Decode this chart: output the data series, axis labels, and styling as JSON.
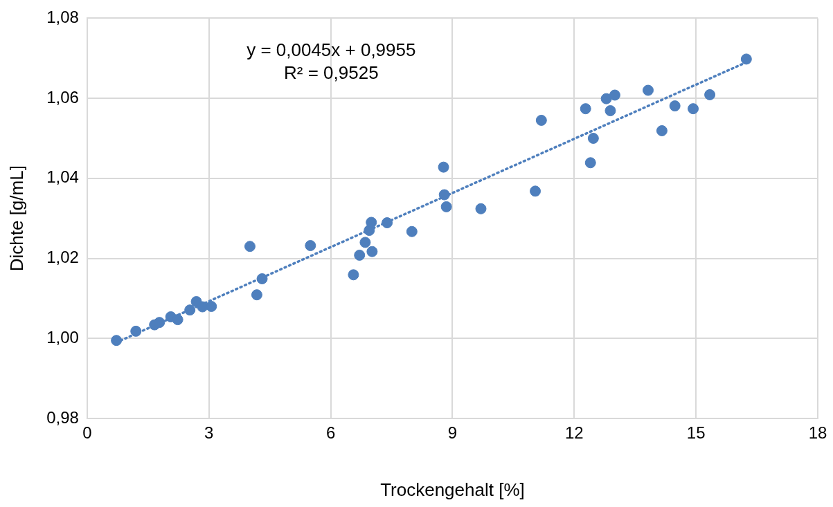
{
  "chart_data": {
    "type": "scatter",
    "xlabel": "Trockengehalt [%]",
    "ylabel": "Dichte [g/mL]",
    "annotations": [
      "y = 0,0045x + 0,9955",
      "R² = 0,9525"
    ],
    "xlim": [
      0,
      18
    ],
    "xticks": [
      0,
      3,
      6,
      9,
      12,
      15,
      18
    ],
    "ylim": [
      0.98,
      1.08
    ],
    "yticks": [
      {
        "value": 0.98,
        "label": "0,98"
      },
      {
        "value": 1.0,
        "label": "1,00"
      },
      {
        "value": 1.02,
        "label": "1,02"
      },
      {
        "value": 1.04,
        "label": "1,04"
      },
      {
        "value": 1.06,
        "label": "1,06"
      },
      {
        "value": 1.08,
        "label": "1,08"
      }
    ],
    "grid": true,
    "marker": "circle",
    "series": [
      {
        "color": "#4e7fbd",
        "x": [
          0.72,
          1.2,
          1.66,
          1.78,
          2.06,
          2.23,
          2.53,
          2.69,
          2.84,
          3.06,
          4.01,
          5.5,
          4.31,
          4.18,
          6.56,
          6.71,
          6.85,
          7.02,
          6.95,
          7.0,
          7.39,
          8.0,
          8.78,
          8.8,
          8.85,
          9.7,
          11.04,
          11.19,
          12.28,
          12.47,
          12.4,
          12.79,
          12.89,
          13.0,
          13.82,
          14.16,
          14.48,
          14.93,
          15.34,
          16.24
        ],
        "values": [
          0.9995,
          1.0018,
          1.0034,
          1.004,
          1.0054,
          1.0047,
          1.0071,
          1.0092,
          1.0079,
          1.008,
          1.023,
          1.0232,
          1.0149,
          1.0109,
          1.0159,
          1.0208,
          1.024,
          1.0217,
          1.027,
          1.029,
          1.0289,
          1.0267,
          1.0428,
          1.0359,
          1.0329,
          1.0324,
          1.0368,
          1.0545,
          1.0574,
          1.05,
          1.0439,
          1.0599,
          1.0569,
          1.0608,
          1.062,
          1.0519,
          1.0581,
          1.0574,
          1.0609,
          1.0698
        ]
      },
      {
        "type": "line",
        "color": "#4e7fbd",
        "marker": "none",
        "line_style": "dotted",
        "x": [
          0.72,
          16.24
        ],
        "values": [
          0.999,
          1.069
        ]
      }
    ]
  }
}
